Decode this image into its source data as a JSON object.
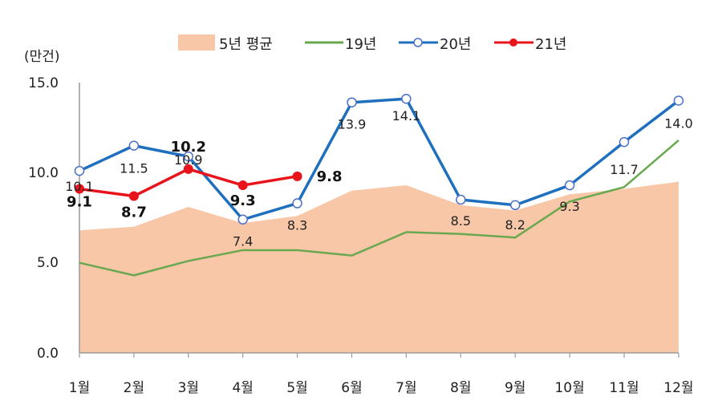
{
  "chart_data": {
    "type": "line",
    "title": "",
    "unit_label": "(만건)",
    "xlabel": "",
    "ylabel": "(만건)",
    "ylim": [
      0,
      15
    ],
    "yticks": [
      "0.0",
      "5.0",
      "10.0",
      "15.0"
    ],
    "grid": false,
    "legend_position": "top",
    "categories": [
      "1월",
      "2월",
      "3월",
      "4월",
      "5월",
      "6월",
      "7월",
      "8월",
      "9월",
      "10월",
      "11월",
      "12월"
    ],
    "series": [
      {
        "name": "5년 평균",
        "type": "area",
        "color": "#f7c7a8",
        "values": [
          6.8,
          7.0,
          8.1,
          7.2,
          7.6,
          9.0,
          9.3,
          8.2,
          7.9,
          8.8,
          9.1,
          9.5
        ],
        "labels_shown": false
      },
      {
        "name": "19년",
        "type": "line",
        "color": "#6aa84f",
        "values": [
          5.0,
          4.3,
          5.1,
          5.7,
          5.7,
          5.4,
          6.7,
          6.6,
          6.4,
          8.4,
          9.2,
          11.8
        ],
        "labels_shown": false
      },
      {
        "name": "20년",
        "type": "line",
        "marker": "open-circle",
        "color": "#1f6fbf",
        "values": [
          10.1,
          11.5,
          10.9,
          7.4,
          8.3,
          13.9,
          14.1,
          8.5,
          8.2,
          9.3,
          11.7,
          14.0
        ],
        "data_labels": [
          "10.1",
          "11.5",
          "10.9",
          "7.4",
          "8.3",
          "13.9",
          "14.1",
          "8.5",
          "8.2",
          "9.3",
          "11.7",
          "14.0"
        ]
      },
      {
        "name": "21년",
        "type": "line",
        "marker": "filled-circle",
        "color": "#e8131b",
        "values": [
          9.1,
          8.7,
          10.2,
          9.3,
          9.8,
          null,
          null,
          null,
          null,
          null,
          null,
          null
        ],
        "data_labels": [
          "9.1",
          "8.7",
          "10.2",
          "9.3",
          "9.8"
        ]
      }
    ]
  },
  "legend": {
    "items": [
      {
        "label": "5년 평균",
        "kind": "area-swatch",
        "color": "#f7c7a8"
      },
      {
        "label": "19년",
        "kind": "line",
        "color": "#6aa84f"
      },
      {
        "label": "20년",
        "kind": "line-open-marker",
        "color": "#1f6fbf"
      },
      {
        "label": "21년",
        "kind": "line-filled-marker",
        "color": "#e8131b"
      }
    ]
  },
  "axis": {
    "unit": "(만건)",
    "y_ticks": [
      "15.0",
      "10.0",
      "5.0",
      "0.0"
    ],
    "x_ticks": [
      "1월",
      "2월",
      "3월",
      "4월",
      "5월",
      "6월",
      "7월",
      "8월",
      "9월",
      "10월",
      "11월",
      "12월"
    ]
  }
}
